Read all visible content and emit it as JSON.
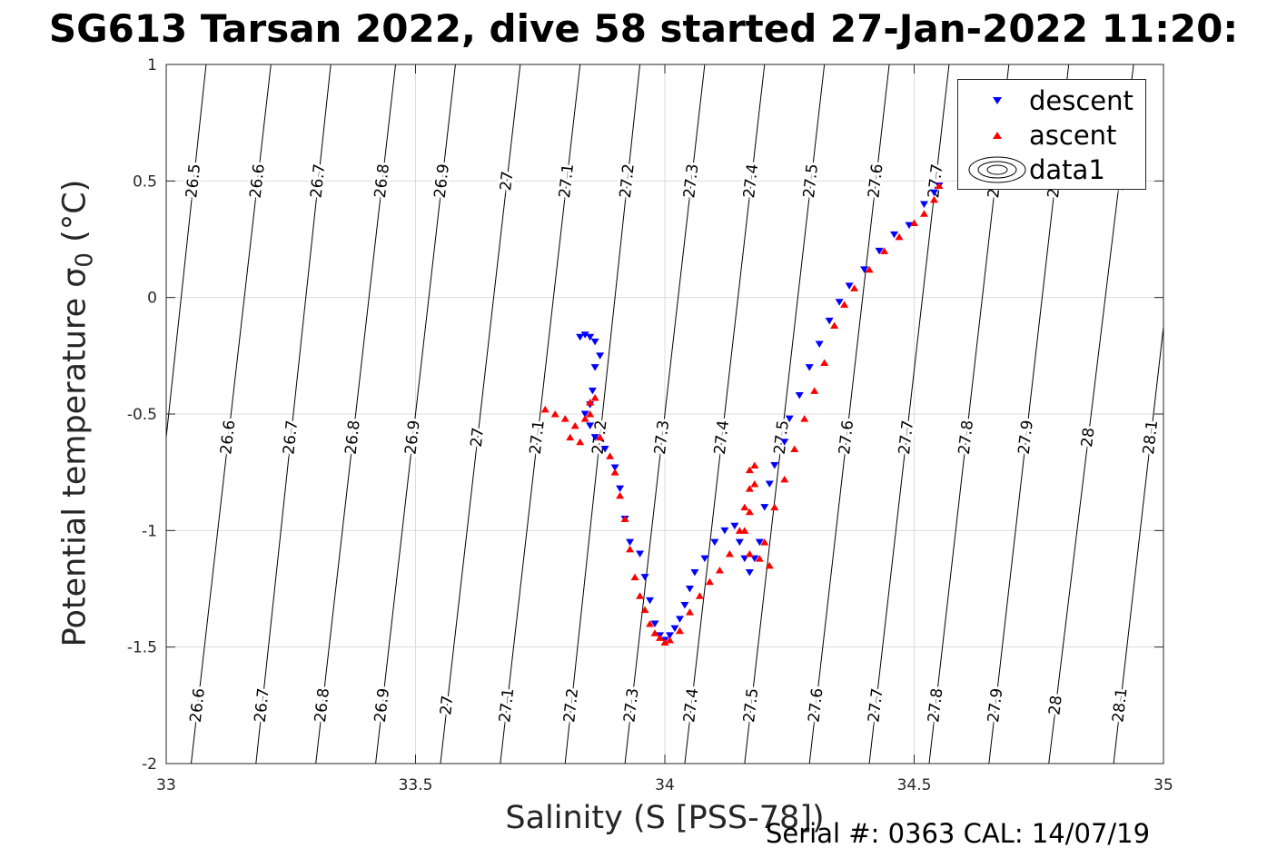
{
  "title": "SG613 Tarsan 2022, dive 58 started 27-Jan-2022 11:20:",
  "xlabel": "Salinity (S [PSS-78])",
  "ylabel_main": "Potential temperature ",
  "ylabel_sigma": "σ",
  "ylabel_sub": "0",
  "ylabel_unit": " (°C)",
  "footer": "Serial #: 0363  CAL: 14/07/19",
  "legend": [
    {
      "name": "descent",
      "marker": "triangle-down",
      "color": "#0000ff"
    },
    {
      "name": "ascent",
      "marker": "triangle-up",
      "color": "#ff0000"
    },
    {
      "name": "data1",
      "marker": "contour-ellipse",
      "color": "#000000"
    }
  ],
  "colors": {
    "axis": "#262626",
    "grid": "#dcdcdc",
    "contour": "#000000",
    "descent": "#0000ff",
    "ascent": "#ff0000"
  },
  "chart_data": {
    "type": "scatter",
    "title": "SG613 Tarsan 2022, dive 58 started 27-Jan-2022 11:20:",
    "xlabel": "Salinity (S [PSS-78])",
    "ylabel": "Potential temperature σ0 (°C)",
    "xlim": [
      33,
      35
    ],
    "ylim": [
      -2,
      1
    ],
    "x_ticks": [
      33,
      33.5,
      34,
      34.5,
      35
    ],
    "x_tick_labels": [
      "33",
      "33.5",
      "34",
      "34.5",
      "35"
    ],
    "y_ticks": [
      -2,
      -1.5,
      -1,
      -0.5,
      0,
      0.5,
      1
    ],
    "y_tick_labels": [
      "-2",
      "-1.5",
      "-1",
      "-0.5",
      "0",
      "0.5",
      "1"
    ],
    "grid": true,
    "legend_position": "top-right",
    "series": [
      {
        "name": "descent",
        "marker": "triangle-down",
        "color": "#0000ff",
        "points": [
          [
            33.83,
            -0.17
          ],
          [
            33.84,
            -0.16
          ],
          [
            33.85,
            -0.17
          ],
          [
            33.86,
            -0.19
          ],
          [
            33.87,
            -0.25
          ],
          [
            33.86,
            -0.3
          ],
          [
            33.855,
            -0.4
          ],
          [
            33.85,
            -0.46
          ],
          [
            33.84,
            -0.5
          ],
          [
            33.85,
            -0.55
          ],
          [
            33.86,
            -0.6
          ],
          [
            33.88,
            -0.65
          ],
          [
            33.9,
            -0.73
          ],
          [
            33.91,
            -0.82
          ],
          [
            33.92,
            -0.95
          ],
          [
            33.93,
            -1.05
          ],
          [
            33.95,
            -1.1
          ],
          [
            33.96,
            -1.2
          ],
          [
            33.97,
            -1.3
          ],
          [
            33.98,
            -1.4
          ],
          [
            33.99,
            -1.45
          ],
          [
            34.0,
            -1.47
          ],
          [
            34.01,
            -1.45
          ],
          [
            34.02,
            -1.42
          ],
          [
            34.03,
            -1.38
          ],
          [
            34.04,
            -1.32
          ],
          [
            34.05,
            -1.25
          ],
          [
            34.06,
            -1.18
          ],
          [
            34.08,
            -1.12
          ],
          [
            34.1,
            -1.05
          ],
          [
            34.12,
            -1.0
          ],
          [
            34.14,
            -0.98
          ],
          [
            34.15,
            -1.05
          ],
          [
            34.16,
            -1.12
          ],
          [
            34.17,
            -1.18
          ],
          [
            34.18,
            -1.12
          ],
          [
            34.19,
            -1.05
          ],
          [
            34.2,
            -0.9
          ],
          [
            34.21,
            -0.8
          ],
          [
            34.22,
            -0.72
          ],
          [
            34.24,
            -0.62
          ],
          [
            34.25,
            -0.52
          ],
          [
            34.27,
            -0.42
          ],
          [
            34.29,
            -0.3
          ],
          [
            34.31,
            -0.2
          ],
          [
            34.33,
            -0.1
          ],
          [
            34.35,
            -0.02
          ],
          [
            34.37,
            0.05
          ],
          [
            34.4,
            0.12
          ],
          [
            34.43,
            0.2
          ],
          [
            34.46,
            0.27
          ],
          [
            34.49,
            0.31
          ],
          [
            34.52,
            0.4
          ],
          [
            34.54,
            0.45
          ],
          [
            34.55,
            0.48
          ]
        ]
      },
      {
        "name": "ascent",
        "marker": "triangle-up",
        "color": "#ff0000",
        "points": [
          [
            33.76,
            -0.48
          ],
          [
            33.78,
            -0.5
          ],
          [
            33.8,
            -0.52
          ],
          [
            33.82,
            -0.55
          ],
          [
            33.81,
            -0.6
          ],
          [
            33.83,
            -0.62
          ],
          [
            33.84,
            -0.52
          ],
          [
            33.85,
            -0.45
          ],
          [
            33.86,
            -0.43
          ],
          [
            33.85,
            -0.5
          ],
          [
            33.87,
            -0.6
          ],
          [
            33.89,
            -0.68
          ],
          [
            33.9,
            -0.75
          ],
          [
            33.91,
            -0.85
          ],
          [
            33.92,
            -0.95
          ],
          [
            33.93,
            -1.08
          ],
          [
            33.94,
            -1.2
          ],
          [
            33.95,
            -1.28
          ],
          [
            33.96,
            -1.34
          ],
          [
            33.97,
            -1.4
          ],
          [
            33.98,
            -1.44
          ],
          [
            33.99,
            -1.46
          ],
          [
            34.0,
            -1.48
          ],
          [
            34.01,
            -1.47
          ],
          [
            34.03,
            -1.43
          ],
          [
            34.05,
            -1.35
          ],
          [
            34.07,
            -1.28
          ],
          [
            34.09,
            -1.22
          ],
          [
            34.11,
            -1.17
          ],
          [
            34.13,
            -1.1
          ],
          [
            34.15,
            -1.0
          ],
          [
            34.16,
            -0.9
          ],
          [
            34.17,
            -0.82
          ],
          [
            34.17,
            -0.74
          ],
          [
            34.18,
            -0.72
          ],
          [
            34.18,
            -0.8
          ],
          [
            34.17,
            -0.92
          ],
          [
            34.16,
            -1.0
          ],
          [
            34.17,
            -1.1
          ],
          [
            34.19,
            -1.12
          ],
          [
            34.21,
            -1.15
          ],
          [
            34.2,
            -1.05
          ],
          [
            34.22,
            -0.9
          ],
          [
            34.24,
            -0.78
          ],
          [
            34.26,
            -0.65
          ],
          [
            34.28,
            -0.52
          ],
          [
            34.3,
            -0.4
          ],
          [
            34.32,
            -0.28
          ],
          [
            34.34,
            -0.12
          ],
          [
            34.36,
            -0.03
          ],
          [
            34.38,
            0.04
          ],
          [
            34.41,
            0.12
          ],
          [
            34.44,
            0.2
          ],
          [
            34.47,
            0.26
          ],
          [
            34.5,
            0.32
          ],
          [
            34.52,
            0.36
          ],
          [
            34.54,
            0.42
          ],
          [
            34.55,
            0.48
          ]
        ]
      }
    ],
    "density_contours": {
      "labels": [
        "26.5",
        "26.6",
        "26.7",
        "26.8",
        "26.9",
        "27",
        "27.1",
        "27.2",
        "27.3",
        "27.4",
        "27.5",
        "27.6",
        "27.7",
        "27.8",
        "27.9",
        "28",
        "28.1"
      ],
      "bottom_salinity": [
        32.93,
        33.05,
        33.18,
        33.3,
        33.42,
        33.55,
        33.67,
        33.8,
        33.92,
        34.04,
        34.16,
        34.29,
        34.41,
        34.53,
        34.65,
        34.77,
        34.9
      ],
      "top_salinity": [
        33.08,
        33.21,
        33.33,
        33.46,
        33.58,
        33.71,
        33.83,
        33.95,
        34.08,
        34.2,
        34.32,
        34.45,
        34.57,
        34.69,
        34.81,
        34.94,
        35.06
      ]
    }
  }
}
